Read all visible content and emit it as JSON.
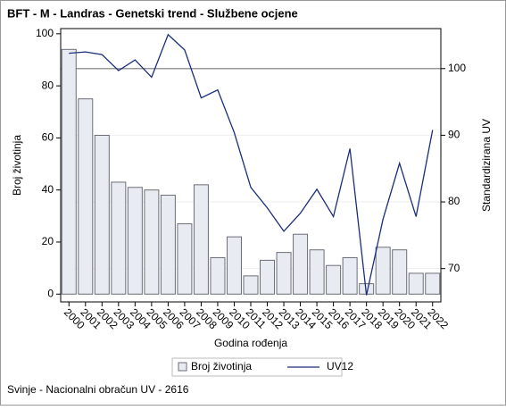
{
  "chart_data": {
    "type": "bar-line",
    "title": "BFT - M - Landras - Genetski trend - Službene ocjene",
    "x_label": "Godina rođenja",
    "y_label": "Broj životinja",
    "y2_label": "Standardizirana UV",
    "footnote": "Svinje - Nacionalni obračun UV - 2616",
    "categories": [
      "2000",
      "2001",
      "2002",
      "2003",
      "2004",
      "2005",
      "2006",
      "2007",
      "2008",
      "2009",
      "2010",
      "2011",
      "2012",
      "2013",
      "2014",
      "2015",
      "2016",
      "2017",
      "2018",
      "2019",
      "2020",
      "2021",
      "2022"
    ],
    "series": [
      {
        "name": "Broj životinja",
        "type": "bar",
        "color": "#e9ebf2",
        "edge_color": "#6b6e78",
        "values": [
          94,
          75,
          61,
          43,
          41,
          40,
          38,
          27,
          42,
          14,
          22,
          7,
          13,
          16,
          23,
          17,
          11,
          14,
          4,
          18,
          17,
          8,
          8
        ]
      },
      {
        "name": "UV12",
        "type": "line",
        "axis": "y2",
        "color": "#1a2e7a",
        "values": [
          102.3,
          102.5,
          102.1,
          99.7,
          101.3,
          98.7,
          105.1,
          102.8,
          95.6,
          96.8,
          90.4,
          82.2,
          79.1,
          75.6,
          78.3,
          81.9,
          77.8,
          88.0,
          66.0,
          77.4,
          85.8,
          77.8,
          90.8
        ]
      }
    ],
    "ylim": [
      -3,
      102
    ],
    "yticks": [
      0,
      20,
      40,
      60,
      80,
      100
    ],
    "y2lim": [
      65,
      106
    ],
    "y2ticks": [
      70,
      80,
      90,
      100
    ],
    "y2_reference": 100,
    "grid": true
  }
}
